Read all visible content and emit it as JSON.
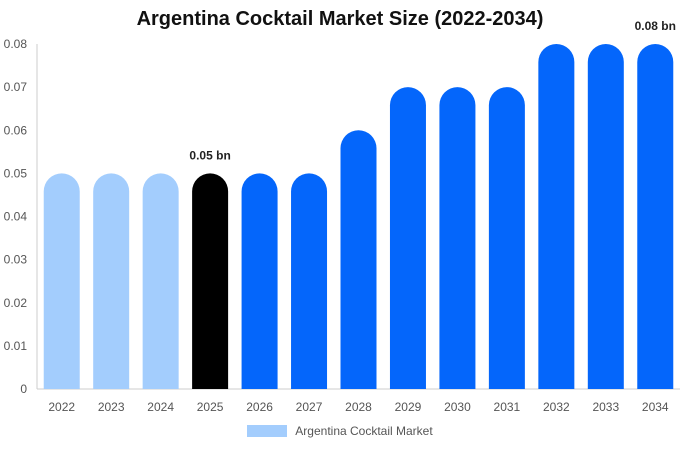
{
  "chart_data": {
    "type": "bar",
    "title": "Argentina Cocktail Market Size (2022-2034)",
    "categories": [
      "2022",
      "2023",
      "2024",
      "2025",
      "2026",
      "2027",
      "2028",
      "2029",
      "2030",
      "2031",
      "2032",
      "2033",
      "2034"
    ],
    "series": [
      {
        "name": "Argentina Cocktail Market",
        "values": [
          0.05,
          0.05,
          0.05,
          0.05,
          0.05,
          0.05,
          0.06,
          0.07,
          0.07,
          0.07,
          0.08,
          0.08,
          0.08
        ]
      }
    ],
    "bar_colors": [
      "#a3cdfd",
      "#a3cdfd",
      "#a3cdfd",
      "#000000",
      "#0466fb",
      "#0466fb",
      "#0466fb",
      "#0466fb",
      "#0466fb",
      "#0466fb",
      "#0466fb",
      "#0466fb",
      "#0466fb"
    ],
    "legend_color": "#a3cdfd",
    "data_labels": [
      {
        "category": "2025",
        "text": "0.05 bn"
      },
      {
        "category": "2034",
        "text": "0.08 bn"
      }
    ],
    "yticks": [
      "0",
      "0.01",
      "0.02",
      "0.03",
      "0.04",
      "0.05",
      "0.06",
      "0.07",
      "0.08"
    ],
    "ylim": [
      0,
      0.08
    ],
    "xlabel": "",
    "ylabel": "",
    "grid": false,
    "legend_position": "bottom"
  }
}
